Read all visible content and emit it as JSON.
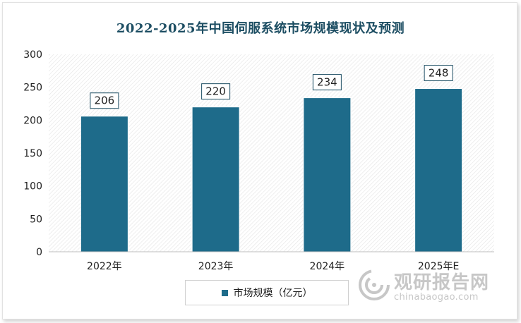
{
  "chart_data": {
    "type": "bar",
    "title": "2022-2025年中国伺服系统市场规模现状及预测",
    "categories": [
      "2022年",
      "2023年",
      "2024年",
      "2025年E"
    ],
    "series": [
      {
        "name": "市场规模（亿元）",
        "values": [
          206,
          220,
          234,
          248
        ],
        "color": "#1e6b8a"
      }
    ],
    "ylim": [
      0,
      300
    ],
    "yticks": [
      0,
      50,
      100,
      150,
      200,
      250,
      300
    ],
    "xlabel": "",
    "ylabel": "",
    "grid": false,
    "legend_position": "bottom",
    "data_labels": true
  },
  "colors": {
    "bar": "#1e6b8a",
    "title": "#1d4e63",
    "hatch": "#e3e3e3"
  },
  "watermark": {
    "brand_cn": "观研报告网",
    "brand_en": "chinabaogao.com",
    "icon": "swirl-logo-icon"
  }
}
